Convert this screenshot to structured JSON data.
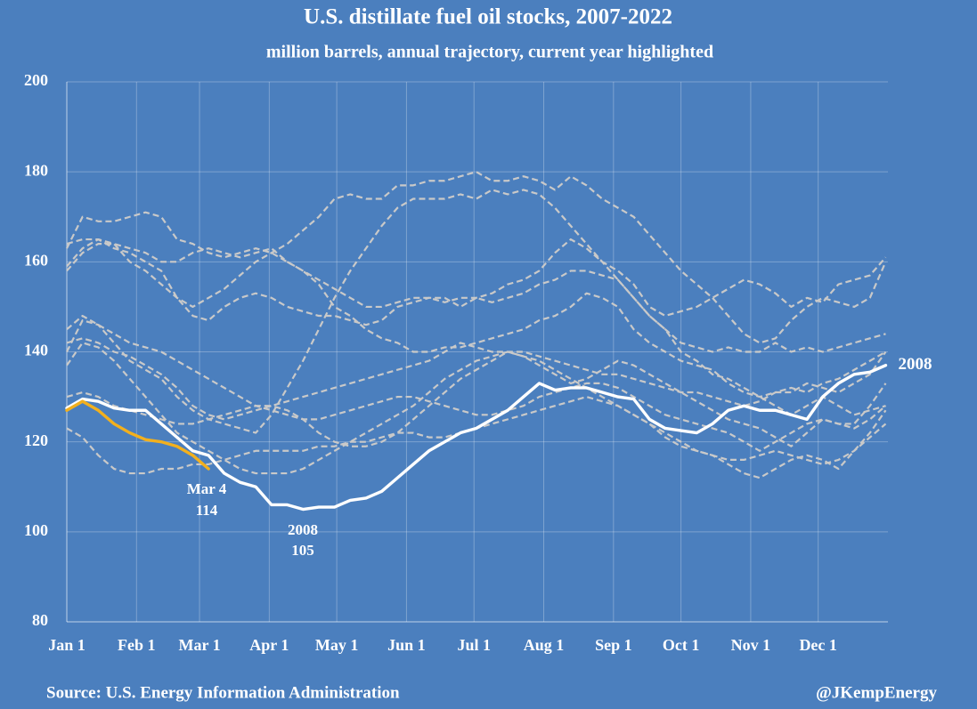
{
  "chart_data": {
    "type": "line",
    "title": "U.S. distillate fuel oil stocks, 2007-2022",
    "subtitle": "million barrels, annual trajectory, current year highlighted",
    "source": "Source: U.S. Energy Information Administration",
    "credit": "@JKempEnergy",
    "x": [
      0,
      7,
      14,
      21,
      28,
      35,
      42,
      49,
      56,
      63,
      70,
      77,
      84,
      91,
      98,
      105,
      112,
      119,
      126,
      133,
      140,
      147,
      154,
      161,
      168,
      175,
      182,
      189,
      196,
      203,
      210,
      217,
      224,
      231,
      238,
      245,
      252,
      259,
      266,
      273,
      280,
      287,
      294,
      301,
      308,
      315,
      322,
      329,
      336,
      343,
      350,
      357,
      364
    ],
    "xlim": [
      0,
      365
    ],
    "xticks": [
      {
        "value": 0,
        "label": "Jan 1"
      },
      {
        "value": 31,
        "label": "Feb 1"
      },
      {
        "value": 59,
        "label": "Mar 1"
      },
      {
        "value": 90,
        "label": "Apr 1"
      },
      {
        "value": 120,
        "label": "May 1"
      },
      {
        "value": 151,
        "label": "Jun 1"
      },
      {
        "value": 181,
        "label": "Jul 1"
      },
      {
        "value": 212,
        "label": "Aug 1"
      },
      {
        "value": 243,
        "label": "Sep 1"
      },
      {
        "value": 273,
        "label": "Oct 1"
      },
      {
        "value": 304,
        "label": "Nov 1"
      },
      {
        "value": 334,
        "label": "Dec 1"
      }
    ],
    "ylim": [
      80,
      200
    ],
    "yticks": [
      80,
      100,
      120,
      140,
      160,
      180,
      200
    ],
    "grid": true,
    "series": [
      {
        "color": "#c9c9c9",
        "dashed": true,
        "values": [
          159,
          163,
          165,
          164,
          160,
          158,
          155,
          152,
          150,
          152,
          154,
          157,
          160,
          162,
          164,
          167,
          170,
          174,
          175,
          174,
          174,
          177,
          177,
          178,
          178,
          179,
          180,
          178,
          178,
          179,
          178,
          176,
          179,
          177,
          174,
          172,
          170,
          166,
          162,
          158,
          155,
          152,
          148,
          144,
          142,
          143,
          147,
          150,
          152,
          151,
          150,
          152,
          160
        ]
      },
      {
        "color": "#c9c9c9",
        "dashed": true,
        "values": [
          163,
          170,
          169,
          169,
          170,
          171,
          170,
          165,
          164,
          162,
          161,
          162,
          163,
          162,
          160,
          158,
          156,
          154,
          152,
          150,
          150,
          151,
          152,
          152,
          151,
          152,
          152,
          153,
          155,
          156,
          158,
          162,
          165,
          163,
          160,
          158,
          155,
          150,
          148,
          149,
          150,
          152,
          154,
          156,
          155,
          153,
          150,
          152,
          151,
          155,
          156,
          157,
          161
        ]
      },
      {
        "color": "#c9c9c9",
        "dashed": true,
        "values": [
          164,
          165,
          165,
          163,
          162,
          160,
          158,
          152,
          148,
          147,
          150,
          152,
          153,
          152,
          150,
          149,
          148,
          148,
          147,
          146,
          147,
          150,
          151,
          152,
          152,
          150,
          152,
          151,
          152,
          153,
          155,
          156,
          158,
          158,
          157,
          156,
          152,
          148,
          145,
          142,
          141,
          140,
          141,
          140,
          140,
          142,
          140,
          141,
          140,
          141,
          142,
          143,
          144
        ]
      },
      {
        "color": "#c9c9c9",
        "dashed": true,
        "values": [
          158,
          162,
          164,
          164,
          163,
          162,
          160,
          160,
          162,
          163,
          162,
          161,
          162,
          163,
          160,
          158,
          155,
          150,
          148,
          145,
          143,
          142,
          140,
          140,
          141,
          141,
          142,
          143,
          144,
          145,
          147,
          148,
          150,
          153,
          152,
          150,
          145,
          142,
          140,
          138,
          137,
          136,
          133,
          131,
          130,
          131,
          131,
          133,
          132,
          131,
          133,
          135,
          140
        ]
      },
      {
        "color": "#c9c9c9",
        "dashed": true,
        "values": [
          140,
          147,
          146,
          142,
          138,
          136,
          134,
          130,
          127,
          125,
          124,
          123,
          122,
          126,
          132,
          138,
          145,
          152,
          158,
          163,
          168,
          172,
          174,
          174,
          174,
          175,
          174,
          176,
          175,
          176,
          175,
          172,
          168,
          164,
          160,
          156,
          152,
          148,
          145,
          140,
          138,
          135,
          134,
          132,
          130,
          128,
          126,
          128,
          130,
          128,
          126,
          127,
          128
        ]
      },
      {
        "color": "#c9c9c9",
        "dashed": true,
        "values": [
          145,
          148,
          146,
          144,
          142,
          141,
          140,
          138,
          136,
          134,
          132,
          130,
          128,
          128,
          129,
          130,
          131,
          132,
          133,
          134,
          135,
          136,
          137,
          138,
          140,
          142,
          141,
          140,
          140,
          140,
          139,
          138,
          137,
          136,
          135,
          135,
          134,
          133,
          132,
          131,
          131,
          130,
          129,
          128,
          129,
          131,
          132,
          131,
          133,
          134,
          136,
          138,
          140
        ]
      },
      {
        "color": "#c9c9c9",
        "dashed": true,
        "values": [
          137,
          142,
          141,
          138,
          134,
          130,
          126,
          122,
          120,
          118,
          116,
          114,
          113,
          113,
          113,
          114,
          116,
          118,
          120,
          122,
          124,
          126,
          128,
          131,
          134,
          136,
          138,
          139,
          140,
          139,
          138,
          136,
          134,
          132,
          130,
          128,
          126,
          124,
          122,
          120,
          118,
          117,
          116,
          116,
          117,
          118,
          117,
          116,
          115,
          116,
          118,
          121,
          124
        ]
      },
      {
        "color": "#c9c9c9",
        "dashed": true,
        "values": [
          123,
          121,
          117,
          114,
          113,
          113,
          114,
          114,
          115,
          115,
          116,
          117,
          118,
          118,
          118,
          118,
          119,
          119,
          120,
          120,
          121,
          122,
          122,
          121,
          121,
          122,
          123,
          124,
          125,
          126,
          127,
          128,
          129,
          130,
          129,
          128,
          126,
          124,
          121,
          119,
          118,
          117,
          115,
          113,
          112,
          114,
          116,
          117,
          116,
          114,
          118,
          122,
          127
        ]
      },
      {
        "color": "#c9c9c9",
        "dashed": true,
        "values": [
          130,
          131,
          130,
          128,
          127,
          126,
          125,
          124,
          124,
          125,
          126,
          127,
          128,
          127,
          126,
          125,
          125,
          126,
          127,
          128,
          129,
          130,
          130,
          129,
          128,
          127,
          126,
          126,
          127,
          128,
          130,
          131,
          132,
          133,
          133,
          132,
          130,
          128,
          126,
          125,
          124,
          123,
          122,
          120,
          118,
          120,
          122,
          124,
          125,
          124,
          123,
          125,
          128
        ]
      },
      {
        "color": "#c9c9c9",
        "dashed": true,
        "values": [
          142,
          143,
          142,
          140,
          139,
          137,
          135,
          132,
          128,
          126,
          125,
          126,
          127,
          128,
          127,
          125,
          122,
          120,
          119,
          119,
          120,
          122,
          125,
          128,
          131,
          134,
          136,
          138,
          140,
          139,
          137,
          135,
          133,
          134,
          136,
          138,
          137,
          135,
          133,
          131,
          129,
          127,
          125,
          124,
          123,
          121,
          119,
          122,
          125,
          124,
          124,
          128,
          133
        ]
      },
      {
        "name": "2008",
        "color": "#ffffff",
        "dashed": false,
        "values": [
          127.5,
          129.5,
          129,
          127.5,
          127,
          127,
          124,
          121,
          118,
          117,
          113,
          111,
          110,
          106,
          106,
          105,
          105.5,
          105.5,
          107,
          107.5,
          109,
          112,
          115,
          118,
          120,
          122,
          123,
          125,
          127,
          130,
          133,
          131.5,
          132,
          132,
          131,
          130,
          129.5,
          125,
          123,
          122.5,
          122,
          124,
          127,
          128,
          127,
          127,
          126,
          125,
          130,
          133,
          135,
          135.5,
          137
        ]
      },
      {
        "color": "#f2b01e",
        "dashed": false,
        "values": [
          127,
          129,
          127,
          124,
          122,
          120.5,
          120,
          119,
          117,
          114,
          null,
          null,
          null,
          null,
          null,
          null,
          null,
          null,
          null,
          null,
          null,
          null,
          null,
          null,
          null,
          null,
          null,
          null,
          null,
          null,
          null,
          null,
          null,
          null,
          null,
          null,
          null,
          null,
          null,
          null,
          null,
          null,
          null,
          null,
          null,
          null,
          null,
          null,
          null,
          null,
          null,
          null,
          null
        ]
      }
    ],
    "annotations": [
      {
        "text": "Mar 4"
      },
      {
        "text": "114"
      },
      {
        "text": "2008"
      },
      {
        "text": "105"
      }
    ]
  }
}
